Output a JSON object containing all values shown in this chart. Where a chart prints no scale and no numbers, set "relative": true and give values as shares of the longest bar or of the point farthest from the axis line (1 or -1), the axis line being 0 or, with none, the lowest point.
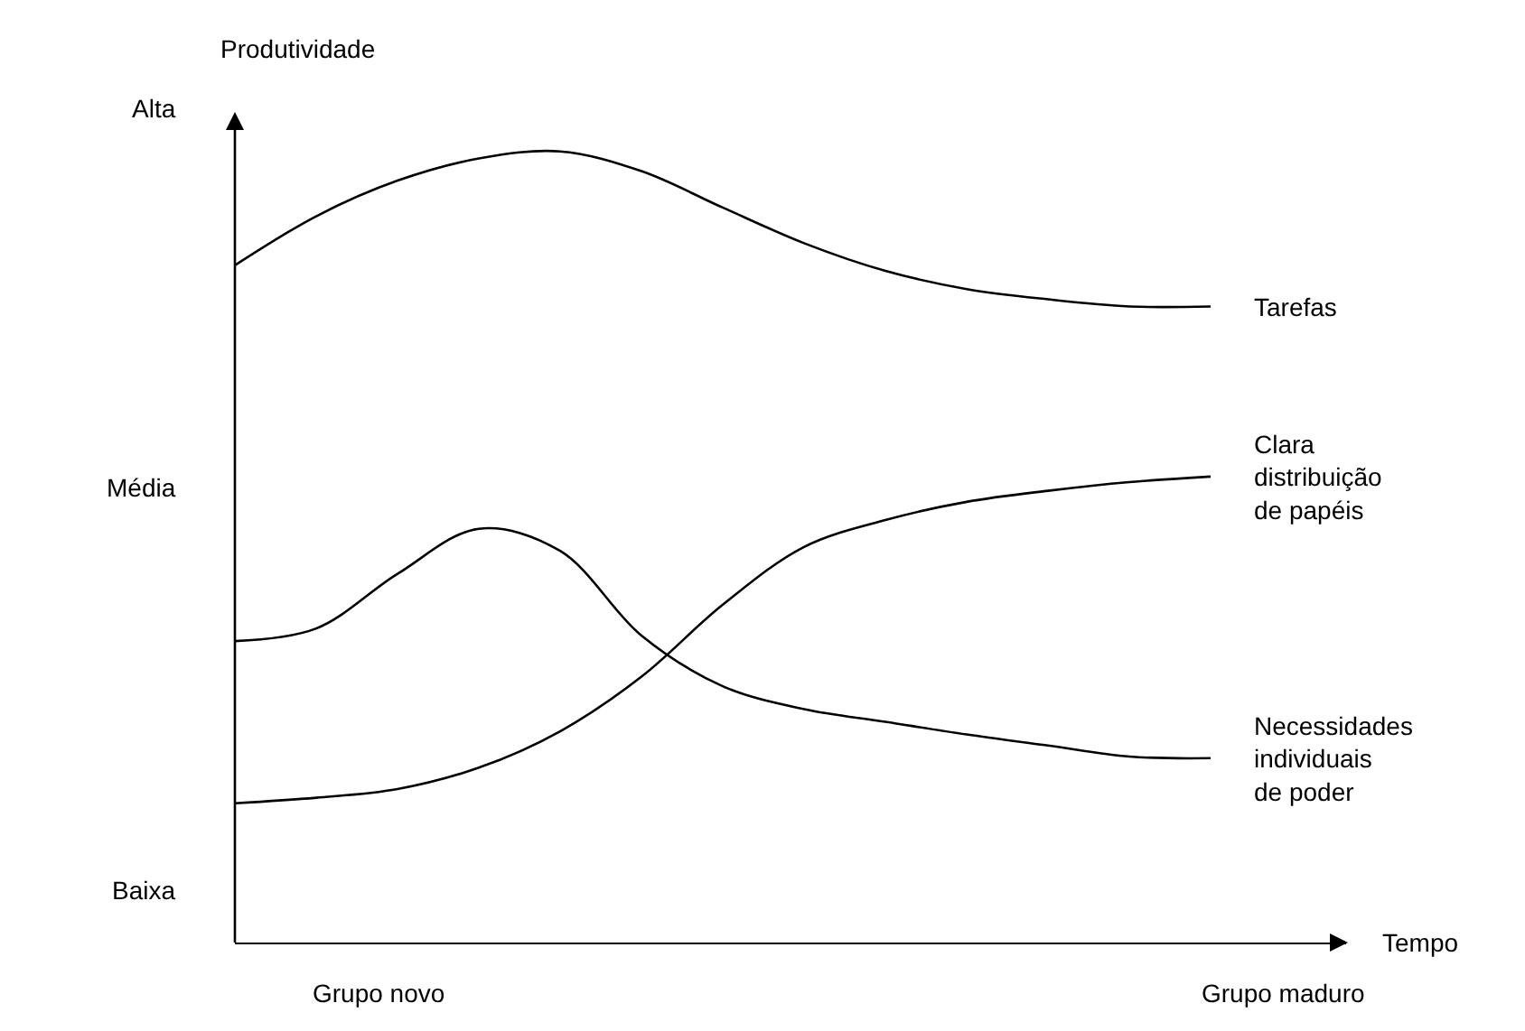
{
  "chart_data": {
    "type": "line",
    "relative": true,
    "ylabel": "Produtividade",
    "annotations": [
      "Alta",
      "Média",
      "Baixa",
      "Grupo novo",
      "Grupo maduro",
      "Tempo"
    ],
    "categories": [
      null,
      null,
      null,
      null,
      null,
      null,
      null,
      null,
      null,
      null,
      null,
      null,
      null
    ],
    "legend": false,
    "marker": "none",
    "line_style": "solid",
    "series": [
      {
        "name": "Tarefas",
        "color": "#000000",
        "values": [
          0.856,
          0.918,
          0.963,
          0.991,
          1,
          0.975,
          0.929,
          0.884,
          0.849,
          0.826,
          0.813,
          0.804,
          0.804
        ]
      },
      {
        "name": "Clara distribuição de papéis",
        "color": "#000000",
        "values": [
          0.176,
          0.183,
          0.194,
          0.221,
          0.267,
          0.336,
          0.427,
          0.5,
          0.534,
          0.557,
          0.571,
          0.582,
          0.589
        ]
      },
      {
        "name": "Necessidades individuais de poder",
        "color": "#000000",
        "values": [
          0.381,
          0.397,
          0.466,
          0.523,
          0.495,
          0.388,
          0.324,
          0.295,
          0.279,
          0.263,
          0.249,
          0.235,
          0.233
        ]
      }
    ]
  }
}
